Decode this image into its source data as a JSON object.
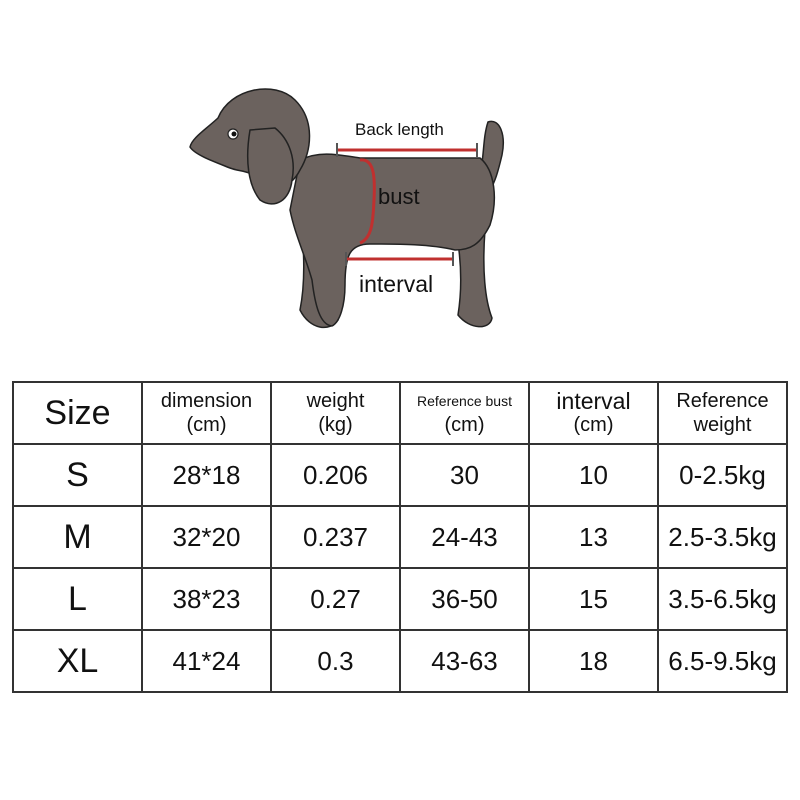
{
  "diagram": {
    "back_length_label": "Back length",
    "bust_label": "bust",
    "interval_label": "interval",
    "body_color": "#6b625e",
    "measure_color": "#c0302f"
  },
  "table": {
    "headers": [
      {
        "line1": "Size",
        "line2": ""
      },
      {
        "line1": "dimension",
        "line2": "(cm)"
      },
      {
        "line1": "weight",
        "line2": "(kg)"
      },
      {
        "line1": "Reference bust",
        "line2": "(cm)"
      },
      {
        "line1": "interval",
        "line2": "(cm)"
      },
      {
        "line1": "Reference",
        "line2": "weight"
      }
    ],
    "rows": [
      [
        "S",
        "28*18",
        "0.206",
        "30",
        "10",
        "0-2.5kg"
      ],
      [
        "M",
        "32*20",
        "0.237",
        "24-43",
        "13",
        "2.5-3.5kg"
      ],
      [
        "L",
        "38*23",
        "0.27",
        "36-50",
        "15",
        "3.5-6.5kg"
      ],
      [
        "XL",
        "41*24",
        "0.3",
        "43-63",
        "18",
        "6.5-9.5kg"
      ]
    ]
  }
}
